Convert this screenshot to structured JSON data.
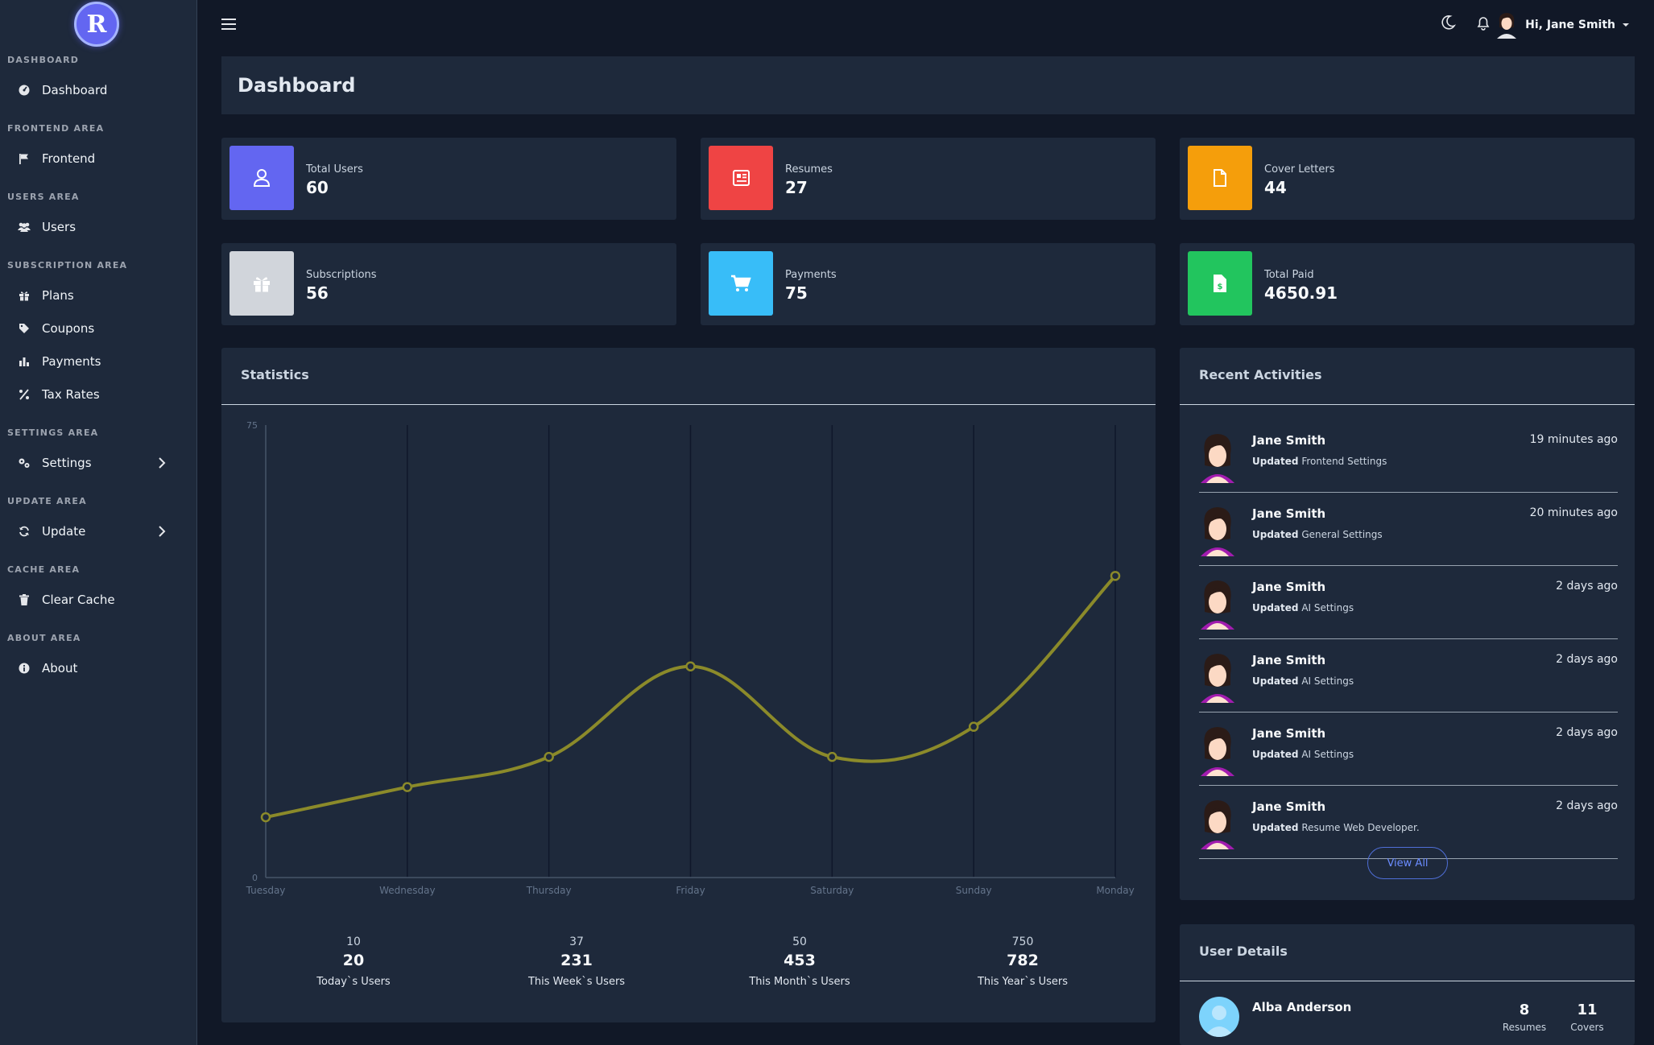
{
  "sidebar": {
    "logo_letter": "R",
    "sections": [
      {
        "title": "DASHBOARD",
        "items": [
          {
            "label": "Dashboard",
            "icon": "dashboard-icon"
          }
        ]
      },
      {
        "title": "FRONTEND AREA",
        "items": [
          {
            "label": "Frontend",
            "icon": "flag-icon"
          }
        ]
      },
      {
        "title": "USERS AREA",
        "items": [
          {
            "label": "Users",
            "icon": "users-icon"
          }
        ]
      },
      {
        "title": "SUBSCRIPTION AREA",
        "items": [
          {
            "label": "Plans",
            "icon": "gift-icon"
          },
          {
            "label": "Coupons",
            "icon": "tags-icon"
          },
          {
            "label": "Payments",
            "icon": "bar-chart-icon"
          },
          {
            "label": "Tax Rates",
            "icon": "percent-icon"
          }
        ]
      },
      {
        "title": "SETTINGS AREA",
        "items": [
          {
            "label": "Settings",
            "icon": "cogs-icon"
          }
        ]
      },
      {
        "title": "UPDATE AREA",
        "items": [
          {
            "label": "Update",
            "icon": "sync-icon"
          }
        ]
      },
      {
        "title": "CACHE AREA",
        "items": [
          {
            "label": "Clear Cache",
            "icon": "trash-icon"
          }
        ]
      },
      {
        "title": "ABOUT AREA",
        "items": [
          {
            "label": "About",
            "icon": "info-icon"
          }
        ]
      }
    ]
  },
  "topbar": {
    "greeting": "Hi, Jane Smith",
    "icons": [
      "menu-icon",
      "moon-icon",
      "bell-icon",
      "caret-down-icon"
    ]
  },
  "page": {
    "title": "Dashboard"
  },
  "stats": [
    {
      "label": "Total Users",
      "value": "60",
      "color": "#6366f1",
      "icon": "user-icon"
    },
    {
      "label": "Resumes",
      "value": "27",
      "color": "#ef4444",
      "icon": "newspaper-icon"
    },
    {
      "label": "Cover Letters",
      "value": "44",
      "color": "#f59e0b",
      "icon": "file-icon"
    },
    {
      "label": "Subscriptions",
      "value": "56",
      "color": "#d1d5db",
      "icon": "gift-icon"
    },
    {
      "label": "Payments",
      "value": "75",
      "color": "#38bdf8",
      "icon": "cart-icon"
    },
    {
      "label": "Total Paid",
      "value": "4650.91",
      "color": "#22c55e",
      "icon": "invoice-dollar-icon"
    }
  ],
  "statistics": {
    "title": "Statistics",
    "summary": [
      {
        "small": "10",
        "big": "20",
        "caption": "Today`s Users"
      },
      {
        "small": "37",
        "big": "231",
        "caption": "This Week`s Users"
      },
      {
        "small": "50",
        "big": "453",
        "caption": "This Month`s Users"
      },
      {
        "small": "750",
        "big": "782",
        "caption": "This Year`s Users"
      }
    ]
  },
  "chart_data": {
    "type": "line",
    "categories": [
      "Tuesday",
      "Wednesday",
      "Thursday",
      "Friday",
      "Saturday",
      "Sunday",
      "Monday"
    ],
    "series": [
      {
        "values": [
          10,
          15,
          20,
          35,
          20,
          25,
          50
        ],
        "color": "#8b8a2a"
      }
    ],
    "ylim": [
      0,
      75
    ],
    "yticks": [
      "0",
      "75"
    ],
    "grid": "vertical"
  },
  "activities": {
    "title": "Recent Activities",
    "items": [
      {
        "name": "Jane Smith",
        "action": "Updated",
        "detail": "Frontend Settings",
        "time": "19 minutes ago"
      },
      {
        "name": "Jane Smith",
        "action": "Updated",
        "detail": "General Settings",
        "time": "20 minutes ago"
      },
      {
        "name": "Jane Smith",
        "action": "Updated",
        "detail": "AI Settings",
        "time": "2 days ago"
      },
      {
        "name": "Jane Smith",
        "action": "Updated",
        "detail": "AI Settings",
        "time": "2 days ago"
      },
      {
        "name": "Jane Smith",
        "action": "Updated",
        "detail": "AI Settings",
        "time": "2 days ago"
      },
      {
        "name": "Jane Smith",
        "action": "Updated",
        "detail": "Resume Web Developer.",
        "time": "2 days ago"
      }
    ],
    "view_all": "View All"
  },
  "user_details": {
    "title": "User Details",
    "user": {
      "name": "Alba Anderson",
      "resumes": "8",
      "resumes_label": "Resumes",
      "covers": "11",
      "covers_label": "Covers"
    }
  }
}
